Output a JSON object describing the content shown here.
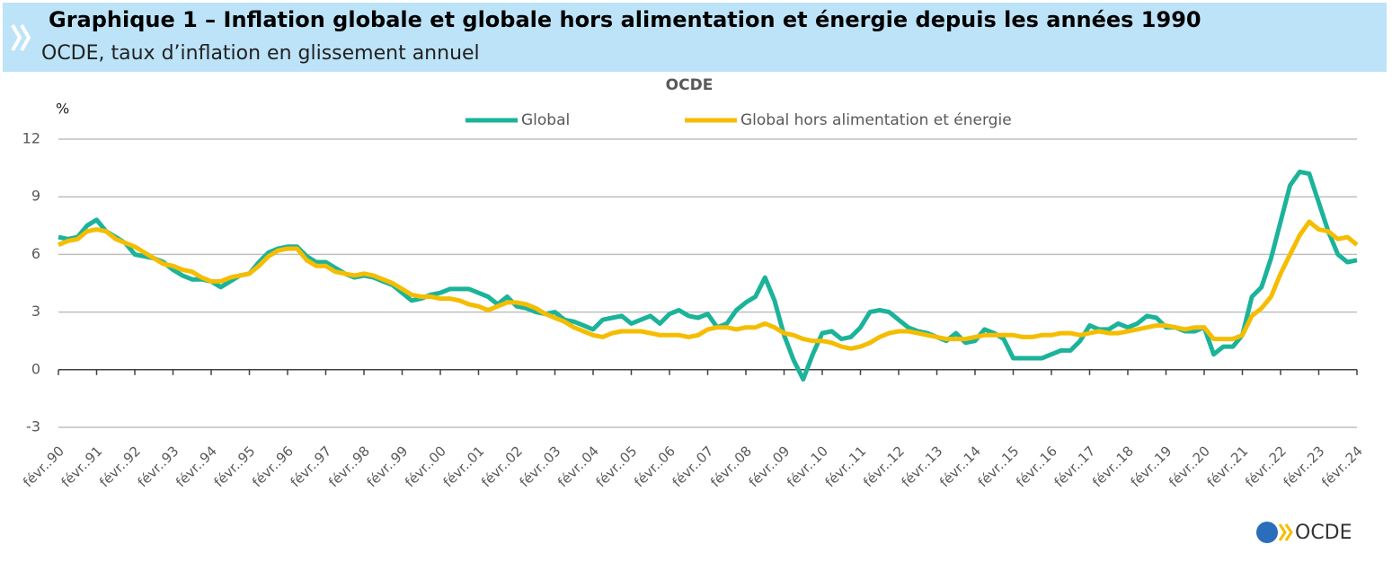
{
  "chart_data": {
    "type": "line",
    "title": "Graphique 1 – Inflation globale et globale hors alimentation et énergie depuis les années 1990",
    "subtitle": "OCDE, taux d’inflation en glissement annuel",
    "panel_title": "OCDE",
    "y_label": "%",
    "logo": "OCDE",
    "ylim": [
      -3,
      12
    ],
    "yticks": [
      -3,
      0,
      3,
      6,
      9,
      12
    ],
    "grid": true,
    "legend": "top",
    "categories": [
      "févr..90",
      null,
      null,
      null,
      "févr..91",
      null,
      null,
      null,
      "févr..92",
      null,
      null,
      null,
      "févr..93",
      null,
      null,
      null,
      "févr..94",
      null,
      null,
      null,
      "févr..95",
      null,
      null,
      null,
      "févr..96",
      null,
      null,
      null,
      "févr..97",
      null,
      null,
      null,
      "févr..98",
      null,
      null,
      null,
      "févr..99",
      null,
      null,
      null,
      "févr..00",
      null,
      null,
      null,
      "févr..01",
      null,
      null,
      null,
      "févr..02",
      null,
      null,
      null,
      "févr..03",
      null,
      null,
      null,
      "févr..04",
      null,
      null,
      null,
      "févr..05",
      null,
      null,
      null,
      "févr..06",
      null,
      null,
      null,
      "févr..07",
      null,
      null,
      null,
      "févr..08",
      null,
      null,
      null,
      "févr..09",
      null,
      null,
      null,
      "févr..10",
      null,
      null,
      null,
      "févr..11",
      null,
      null,
      null,
      "févr..12",
      null,
      null,
      null,
      "févr..13",
      null,
      null,
      null,
      "févr..14",
      null,
      null,
      null,
      "févr..15",
      null,
      null,
      null,
      "févr..16",
      null,
      null,
      null,
      "févr..17",
      null,
      null,
      null,
      "févr..18",
      null,
      null,
      null,
      "févr..19",
      null,
      null,
      null,
      "févr..20",
      null,
      null,
      null,
      "févr..21",
      null,
      null,
      null,
      "févr..22",
      null,
      null,
      null,
      "févr..23",
      null,
      null,
      null,
      "févr..24"
    ],
    "series": [
      {
        "name": "Global",
        "color": "#1bb39a",
        "values": [
          6.9,
          6.8,
          6.9,
          7.5,
          7.8,
          7.2,
          6.9,
          6.6,
          6.0,
          5.9,
          5.8,
          5.6,
          5.2,
          4.9,
          4.7,
          4.7,
          4.6,
          4.3,
          4.6,
          4.9,
          5.0,
          5.6,
          6.1,
          6.3,
          6.4,
          6.4,
          5.9,
          5.6,
          5.6,
          5.3,
          5.0,
          4.8,
          4.9,
          4.8,
          4.6,
          4.4,
          4.0,
          3.6,
          3.7,
          3.9,
          4.0,
          4.2,
          4.2,
          4.2,
          4.0,
          3.8,
          3.4,
          3.8,
          3.3,
          3.2,
          3.0,
          2.9,
          3.0,
          2.6,
          2.5,
          2.3,
          2.1,
          2.6,
          2.7,
          2.8,
          2.4,
          2.6,
          2.8,
          2.4,
          2.9,
          3.1,
          2.8,
          2.7,
          2.9,
          2.2,
          2.4,
          3.1,
          3.5,
          3.8,
          4.8,
          3.6,
          1.8,
          0.5,
          -0.5,
          0.8,
          1.9,
          2.0,
          1.6,
          1.7,
          2.2,
          3.0,
          3.1,
          3.0,
          2.6,
          2.2,
          2.0,
          1.9,
          1.7,
          1.5,
          1.9,
          1.4,
          1.5,
          2.1,
          1.9,
          1.6,
          0.6,
          0.6,
          0.6,
          0.6,
          0.8,
          1.0,
          1.0,
          1.5,
          2.3,
          2.1,
          2.1,
          2.4,
          2.2,
          2.4,
          2.8,
          2.7,
          2.2,
          2.2,
          2.0,
          2.0,
          2.2,
          0.8,
          1.2,
          1.2,
          1.8,
          3.8,
          4.3,
          5.8,
          7.7,
          9.6,
          10.3,
          10.2,
          8.7,
          7.2,
          6.0,
          5.6,
          5.7
        ]
      },
      {
        "name": "Global hors alimentation et énergie",
        "color": "#f5bd02",
        "values": [
          6.5,
          6.7,
          6.8,
          7.2,
          7.3,
          7.2,
          6.8,
          6.6,
          6.4,
          6.1,
          5.8,
          5.5,
          5.4,
          5.2,
          5.1,
          4.8,
          4.6,
          4.6,
          4.8,
          4.9,
          5.0,
          5.4,
          5.9,
          6.2,
          6.3,
          6.3,
          5.7,
          5.4,
          5.4,
          5.1,
          5.0,
          4.9,
          5.0,
          4.9,
          4.7,
          4.5,
          4.2,
          3.9,
          3.8,
          3.8,
          3.7,
          3.7,
          3.6,
          3.4,
          3.3,
          3.1,
          3.3,
          3.5,
          3.5,
          3.4,
          3.2,
          2.9,
          2.7,
          2.5,
          2.2,
          2.0,
          1.8,
          1.7,
          1.9,
          2.0,
          2.0,
          2.0,
          1.9,
          1.8,
          1.8,
          1.8,
          1.7,
          1.8,
          2.1,
          2.2,
          2.2,
          2.1,
          2.2,
          2.2,
          2.4,
          2.2,
          1.9,
          1.8,
          1.6,
          1.5,
          1.5,
          1.4,
          1.2,
          1.1,
          1.2,
          1.4,
          1.7,
          1.9,
          2.0,
          2.0,
          1.9,
          1.8,
          1.7,
          1.6,
          1.6,
          1.6,
          1.7,
          1.8,
          1.8,
          1.8,
          1.8,
          1.7,
          1.7,
          1.8,
          1.8,
          1.9,
          1.9,
          1.8,
          1.9,
          2.0,
          1.9,
          1.9,
          2.0,
          2.1,
          2.2,
          2.3,
          2.3,
          2.2,
          2.1,
          2.2,
          2.2,
          1.6,
          1.6,
          1.6,
          1.8,
          2.8,
          3.2,
          3.8,
          5.0,
          6.0,
          7.0,
          7.7,
          7.3,
          7.2,
          6.8,
          6.9,
          6.5
        ]
      }
    ]
  }
}
